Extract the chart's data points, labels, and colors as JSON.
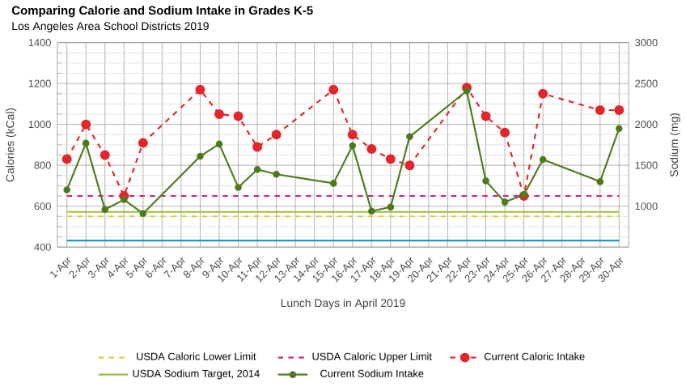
{
  "chart_data": {
    "type": "line",
    "title": "Comparing Calorie and Sodium Intake in Grades K-5",
    "subtitle": "Los Angeles Area School Districts 2019",
    "xlabel": "Lunch Days in April 2019",
    "ylabel": "Calories (kCal)",
    "y2label": "Sodium (mg)",
    "categories": [
      "1-Apr",
      "2-Apr",
      "3-Apr",
      "4-Apr",
      "5-Apr",
      "6-Apr",
      "7-Apr",
      "8-Apr",
      "9-Apr",
      "10-Apr",
      "11-Apr",
      "12-Apr",
      "13-Apr",
      "14-Apr",
      "15-Apr",
      "16-Apr",
      "17-Apr",
      "18-Apr",
      "19-Apr",
      "20-Apr",
      "21-Apr",
      "22-Apr",
      "23-Apr",
      "24-Apr",
      "25-Apr",
      "26-Apr",
      "27-Apr",
      "28-Apr",
      "29-Apr",
      "30-Apr"
    ],
    "series": [
      {
        "name": "USDA Caloric Lower Limit",
        "color": "#d9cf3a",
        "line_style": "dashed",
        "marker": "none",
        "values": [
          550,
          550,
          550,
          550,
          550,
          550,
          550,
          550,
          550,
          550,
          550,
          550,
          550,
          550,
          550,
          550,
          550,
          550,
          550,
          550,
          550,
          550,
          550,
          550,
          550,
          550,
          550,
          550,
          550,
          550
        ]
      },
      {
        "name": "USDA Caloric Upper Limit",
        "color": "#d4237d",
        "line_style": "dashed",
        "marker": "none",
        "values": [
          650,
          650,
          650,
          650,
          650,
          650,
          650,
          650,
          650,
          650,
          650,
          650,
          650,
          650,
          650,
          650,
          650,
          650,
          650,
          650,
          650,
          650,
          650,
          650,
          650,
          650,
          650,
          650,
          650,
          650
        ]
      },
      {
        "name": "USDA Sodium Target, 2014",
        "color": "#9bbf3f",
        "line_style": "solid",
        "marker": "none",
        "axis": "y2",
        "values": [
          930,
          930,
          930,
          930,
          930,
          930,
          930,
          930,
          930,
          930,
          930,
          930,
          930,
          930,
          930,
          930,
          930,
          930,
          930,
          930,
          930,
          930,
          930,
          930,
          930,
          930,
          930,
          930,
          930,
          930
        ]
      },
      {
        "color": "#1c9cc4",
        "line_style": "solid",
        "marker": "none",
        "axis": "y2",
        "values": [
          580,
          580,
          580,
          580,
          580,
          580,
          580,
          580,
          580,
          580,
          580,
          580,
          580,
          580,
          580,
          580,
          580,
          580,
          580,
          580,
          580,
          580,
          580,
          580,
          580,
          580,
          580,
          580,
          580,
          580
        ]
      },
      {
        "name": "Current Caloric Intake",
        "color": "#e3262b",
        "line_style": "dashed",
        "marker": "circle",
        "values": [
          830,
          1000,
          850,
          650,
          910,
          null,
          null,
          1170,
          1050,
          1040,
          890,
          950,
          null,
          null,
          1170,
          950,
          880,
          830,
          800,
          null,
          null,
          1180,
          1040,
          960,
          650,
          1150,
          null,
          null,
          1070,
          1070
        ]
      },
      {
        "name": "Current Sodium Intake",
        "color": "#4e7a1c",
        "line_style": "solid",
        "marker": "circle",
        "axis": "y2",
        "values": [
          1200,
          1770,
          960,
          1080,
          910,
          null,
          null,
          1610,
          1760,
          1230,
          1450,
          1390,
          null,
          null,
          1280,
          1740,
          940,
          990,
          1850,
          null,
          null,
          2410,
          1310,
          1050,
          1140,
          1570,
          null,
          null,
          1300,
          1950
        ]
      }
    ],
    "ylim": [
      400,
      1400
    ],
    "yticks": [
      400,
      600,
      800,
      1000,
      1200,
      1400
    ],
    "y2lim": [
      500,
      3000
    ],
    "y2ticks": [
      1000,
      1500,
      2000,
      2500,
      3000
    ],
    "grid": true,
    "legend": "bottom"
  }
}
